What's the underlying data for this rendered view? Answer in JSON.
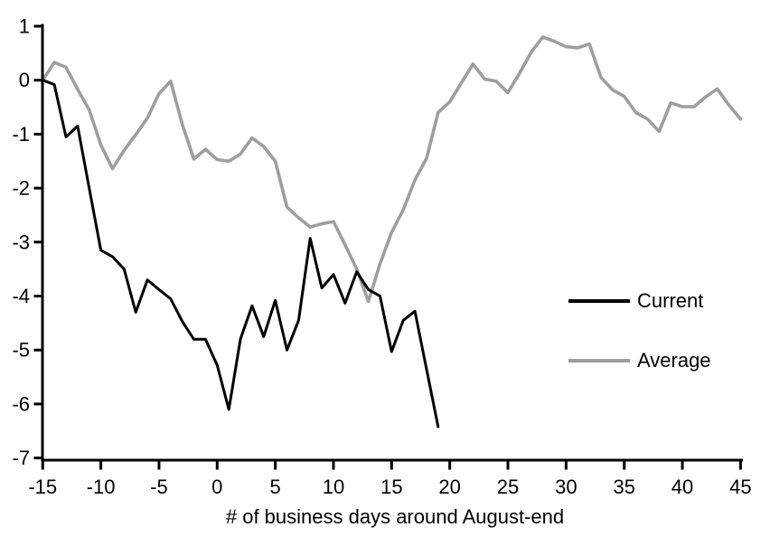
{
  "chart": {
    "xlabel": "# of business days around August-end",
    "legend": [
      {
        "label": "Current",
        "color": "#000000"
      },
      {
        "label": "Average",
        "color": "#9e9e9e"
      }
    ]
  },
  "chart_data": {
    "type": "line",
    "title": "",
    "xlabel": "# of business days around August-end",
    "ylabel": "",
    "xlim": [
      -15,
      45
    ],
    "ylim": [
      -7,
      1
    ],
    "x_ticks": [
      -15,
      -10,
      -5,
      0,
      5,
      10,
      15,
      20,
      25,
      30,
      35,
      40,
      45
    ],
    "y_ticks": [
      1,
      0,
      -1,
      -2,
      -3,
      -4,
      -5,
      -6,
      -7
    ],
    "grid": false,
    "legend_position": "middle-right",
    "series": [
      {
        "name": "Current",
        "color": "#000000",
        "x": [
          -15,
          -14,
          -13,
          -12,
          -11,
          -10,
          -9,
          -8,
          -7,
          -6,
          -5,
          -4,
          -3,
          -2,
          -1,
          0,
          1,
          2,
          3,
          4,
          5,
          6,
          7,
          8,
          9,
          10,
          11,
          12,
          13,
          14,
          15,
          16,
          17,
          18,
          19
        ],
        "y": [
          0.0,
          -0.08,
          -1.05,
          -0.85,
          -2.0,
          -3.15,
          -3.27,
          -3.5,
          -4.3,
          -3.7,
          -3.88,
          -4.05,
          -4.47,
          -4.8,
          -4.8,
          -5.28,
          -6.1,
          -4.8,
          -4.18,
          -4.75,
          -4.08,
          -5.0,
          -4.45,
          -2.93,
          -3.85,
          -3.6,
          -4.13,
          -3.55,
          -3.88,
          -4.0,
          -5.03,
          -4.45,
          -4.28,
          -5.35,
          -6.42
        ]
      },
      {
        "name": "Average",
        "color": "#9e9e9e",
        "x": [
          -15,
          -14,
          -13,
          -12,
          -11,
          -10,
          -9,
          -8,
          -7,
          -6,
          -5,
          -4,
          -3,
          -2,
          -1,
          0,
          1,
          2,
          3,
          4,
          5,
          6,
          7,
          8,
          9,
          10,
          11,
          12,
          13,
          14,
          15,
          16,
          17,
          18,
          19,
          20,
          21,
          22,
          23,
          24,
          25,
          26,
          27,
          28,
          29,
          30,
          31,
          32,
          33,
          34,
          35,
          36,
          37,
          38,
          39,
          40,
          41,
          42,
          43,
          44,
          45
        ],
        "y": [
          0.0,
          0.33,
          0.24,
          -0.17,
          -0.55,
          -1.2,
          -1.64,
          -1.3,
          -1.01,
          -0.7,
          -0.25,
          -0.02,
          -0.82,
          -1.46,
          -1.28,
          -1.47,
          -1.5,
          -1.37,
          -1.07,
          -1.23,
          -1.5,
          -2.35,
          -2.55,
          -2.72,
          -2.66,
          -2.62,
          -3.05,
          -3.5,
          -4.1,
          -3.4,
          -2.82,
          -2.4,
          -1.85,
          -1.45,
          -0.6,
          -0.4,
          -0.05,
          0.3,
          0.02,
          -0.02,
          -0.23,
          0.13,
          0.52,
          0.8,
          0.72,
          0.62,
          0.6,
          0.67,
          0.05,
          -0.18,
          -0.3,
          -0.6,
          -0.72,
          -0.95,
          -0.42,
          -0.49,
          -0.49,
          -0.31,
          -0.16,
          -0.46,
          -0.72
        ]
      }
    ]
  }
}
